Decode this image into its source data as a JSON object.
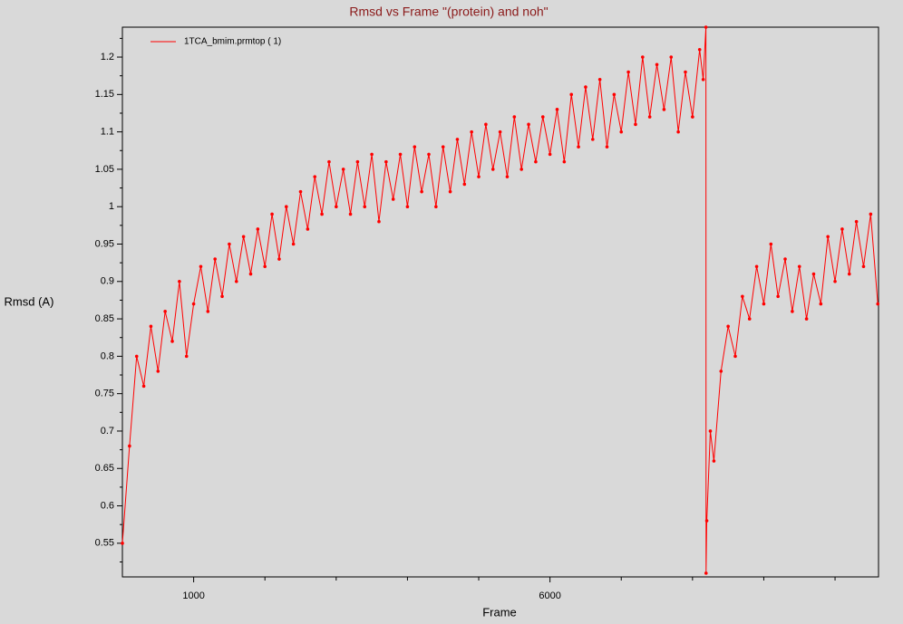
{
  "chart_data": {
    "type": "line",
    "title": "Rmsd vs Frame \"(protein) and noh\"",
    "x_label": "Frame",
    "y_label": "Rmsd (A)",
    "xlim": [
      0,
      10610
    ],
    "ylim": [
      0.505,
      1.24
    ],
    "xticks": [
      1000,
      6000
    ],
    "xminor_ticks": [
      2000,
      3000,
      4000,
      5000,
      7000,
      8000,
      9000,
      10000
    ],
    "yticks": [
      0.55,
      0.6,
      0.65,
      0.7,
      0.75,
      0.8,
      0.85,
      0.9,
      0.95,
      1,
      1.05,
      1.1,
      1.15,
      1.2
    ],
    "yminor_ticks": [
      0.525,
      0.575,
      0.625,
      0.675,
      0.725,
      0.775,
      0.825,
      0.875,
      0.925,
      0.975,
      1.025,
      1.075,
      1.125,
      1.175,
      1.225
    ],
    "legend": "top-left",
    "x": [
      0,
      100,
      200,
      300,
      400,
      500,
      600,
      700,
      800,
      900,
      1000,
      1100,
      1200,
      1300,
      1400,
      1500,
      1600,
      1700,
      1800,
      1900,
      2000,
      2100,
      2200,
      2300,
      2400,
      2500,
      2600,
      2700,
      2800,
      2900,
      3000,
      3100,
      3200,
      3300,
      3400,
      3500,
      3600,
      3700,
      3800,
      3900,
      4000,
      4100,
      4200,
      4300,
      4400,
      4500,
      4600,
      4700,
      4800,
      4900,
      5000,
      5100,
      5200,
      5300,
      5400,
      5500,
      5600,
      5700,
      5800,
      5900,
      6000,
      6100,
      6200,
      6300,
      6400,
      6500,
      6600,
      6700,
      6800,
      6900,
      7000,
      7100,
      7200,
      7300,
      7400,
      7500,
      7600,
      7700,
      7800,
      7900,
      8000,
      8100,
      8150,
      8188,
      8190,
      8200,
      8250,
      8300,
      8400,
      8500,
      8600,
      8700,
      8800,
      8900,
      9000,
      9100,
      9200,
      9300,
      9400,
      9500,
      9600,
      9700,
      9800,
      9900,
      10000,
      10100,
      10200,
      10300,
      10400,
      10500,
      10600
    ],
    "series": [
      {
        "name": "1TCA_bmim.prmtop ( 1)",
        "color": "#ff0000",
        "values": [
          0.55,
          0.68,
          0.8,
          0.76,
          0.84,
          0.78,
          0.86,
          0.82,
          0.9,
          0.8,
          0.87,
          0.92,
          0.86,
          0.93,
          0.88,
          0.95,
          0.9,
          0.96,
          0.91,
          0.97,
          0.92,
          0.99,
          0.93,
          1.0,
          0.95,
          1.02,
          0.97,
          1.04,
          0.99,
          1.06,
          1.0,
          1.05,
          0.99,
          1.06,
          1.0,
          1.07,
          0.98,
          1.06,
          1.01,
          1.07,
          1.0,
          1.08,
          1.02,
          1.07,
          1.0,
          1.08,
          1.02,
          1.09,
          1.03,
          1.1,
          1.04,
          1.11,
          1.05,
          1.1,
          1.04,
          1.12,
          1.05,
          1.11,
          1.06,
          1.12,
          1.07,
          1.13,
          1.06,
          1.15,
          1.08,
          1.16,
          1.09,
          1.17,
          1.08,
          1.15,
          1.1,
          1.18,
          1.11,
          1.2,
          1.12,
          1.19,
          1.13,
          1.2,
          1.1,
          1.18,
          1.12,
          1.21,
          1.17,
          1.24,
          0.51,
          0.58,
          0.7,
          0.66,
          0.78,
          0.84,
          0.8,
          0.88,
          0.85,
          0.92,
          0.87,
          0.95,
          0.88,
          0.93,
          0.86,
          0.92,
          0.85,
          0.91,
          0.87,
          0.96,
          0.9,
          0.97,
          0.91,
          0.98,
          0.92,
          0.99,
          0.87
        ]
      }
    ]
  }
}
